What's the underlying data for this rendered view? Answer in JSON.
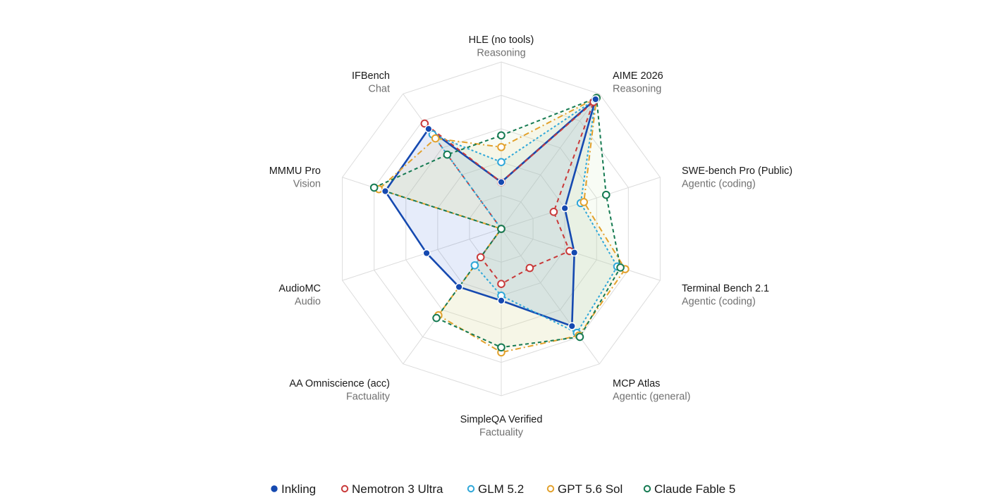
{
  "chart_data": {
    "type": "radar",
    "axes": [
      {
        "name": "HLE (no tools)",
        "category": "Reasoning"
      },
      {
        "name": "AIME 2026",
        "category": "Reasoning"
      },
      {
        "name": "SWE-bench Pro (Public)",
        "category": "Agentic (coding)"
      },
      {
        "name": "Terminal Bench 2.1",
        "category": "Agentic (coding)"
      },
      {
        "name": "MCP Atlas",
        "category": "Agentic (general)"
      },
      {
        "name": "SimpleQA Verified",
        "category": "Factuality"
      },
      {
        "name": "AA Omniscience (acc)",
        "category": "Factuality"
      },
      {
        "name": "AudioMC",
        "category": "Audio"
      },
      {
        "name": "MMMU Pro",
        "category": "Vision"
      },
      {
        "name": "IFBench",
        "category": "Chat"
      }
    ],
    "range": [
      0,
      1
    ],
    "grid_levels": 5,
    "series": [
      {
        "name": "Inkling",
        "color": "#1549b0",
        "marker": "filled",
        "dash": "solid",
        "fill": "#3f6fd8",
        "values": [
          0.28,
          0.96,
          0.4,
          0.46,
          0.72,
          0.43,
          0.43,
          0.47,
          0.73,
          0.74
        ]
      },
      {
        "name": "Nemotron 3 Ultra",
        "color": "#c93a3a",
        "marker": "hollow",
        "dash": "6,5",
        "fill": "none",
        "values": [
          0.28,
          0.94,
          0.33,
          0.43,
          0.29,
          0.33,
          0.21,
          0.0,
          0.0,
          0.78
        ]
      },
      {
        "name": "GLM 5.2",
        "color": "#2ea7d9",
        "marker": "hollow",
        "dash": "3,3",
        "fill": "#7fc6e6",
        "values": [
          0.4,
          0.96,
          0.5,
          0.73,
          0.77,
          0.4,
          0.27,
          0.0,
          0.0,
          0.7
        ]
      },
      {
        "name": "GPT 5.6 Sol",
        "color": "#e2a12c",
        "marker": "hollow",
        "dash": "8,4,2,4",
        "fill": "#f2cf86",
        "values": [
          0.49,
          0.97,
          0.52,
          0.78,
          0.79,
          0.74,
          0.64,
          0.0,
          0.77,
          0.67
        ]
      },
      {
        "name": "Claude Fable 5",
        "color": "#157a52",
        "marker": "hollow",
        "dash": "5,4",
        "fill": "#c7e6b3",
        "values": [
          0.56,
          0.97,
          0.66,
          0.75,
          0.8,
          0.71,
          0.66,
          0.0,
          0.8,
          0.55
        ]
      }
    ]
  }
}
